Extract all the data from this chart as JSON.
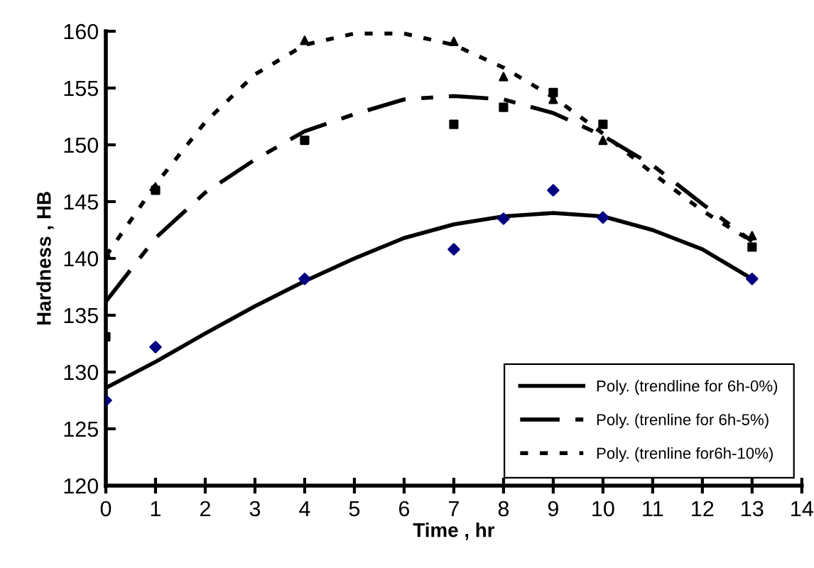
{
  "chart_data": {
    "type": "scatter",
    "xlabel": "Time , hr",
    "ylabel": "Hardness , HB",
    "xlim": [
      0,
      14
    ],
    "ylim": [
      120,
      160
    ],
    "xticks": [
      0,
      1,
      2,
      3,
      4,
      5,
      6,
      7,
      8,
      9,
      10,
      11,
      12,
      13,
      14
    ],
    "yticks": [
      120,
      125,
      130,
      135,
      140,
      145,
      150,
      155,
      160
    ],
    "grid": false,
    "legend": "bottom right",
    "series": [
      {
        "marker": "diamond",
        "color": "#000080",
        "x": [
          0,
          1,
          4,
          7,
          8,
          9,
          10,
          13
        ],
        "values": [
          127.5,
          132.2,
          138.2,
          140.8,
          143.5,
          146,
          143.6,
          138.2
        ]
      },
      {
        "marker": "square",
        "color": "#000000",
        "x": [
          0,
          1,
          4,
          7,
          8,
          9,
          10,
          13
        ],
        "values": [
          133.1,
          146,
          150.4,
          151.8,
          153.3,
          154.6,
          151.8,
          141
        ]
      },
      {
        "marker": "triangle",
        "color": "#000000",
        "x": [
          0,
          1,
          4,
          7,
          8,
          9,
          10,
          13
        ],
        "values": [
          140.5,
          146.3,
          159.2,
          159.1,
          156,
          154,
          150.4,
          142
        ]
      },
      {
        "type": "line",
        "name": "Poly. (trendline for 6h-0%)",
        "line_style": "solid",
        "color": "#000000",
        "x": [
          0,
          1,
          2,
          3,
          4,
          5,
          6,
          7,
          8,
          9,
          10,
          11,
          12,
          13
        ],
        "values": [
          128.6,
          130.9,
          133.4,
          135.8,
          138,
          140,
          141.8,
          143,
          143.7,
          144,
          143.7,
          142.5,
          140.8,
          138.2
        ]
      },
      {
        "type": "line",
        "name": "Poly. (trenline for 6h-5%)",
        "line_style": "dashdot",
        "color": "#000000",
        "x": [
          0,
          1,
          2,
          3,
          4,
          5,
          6,
          7,
          8,
          9,
          10,
          11,
          12,
          13
        ],
        "values": [
          136.2,
          141.8,
          145.8,
          148.7,
          151.2,
          152.7,
          154,
          154.3,
          154,
          152.8,
          150.8,
          148.2,
          144.8,
          141.5
        ]
      },
      {
        "type": "line",
        "name": "Poly. (trenline for6h-10%)",
        "line_style": "dotted",
        "color": "#000000",
        "x": [
          0,
          1,
          2,
          3,
          4,
          5,
          6,
          7,
          8,
          9,
          10,
          11,
          12,
          13
        ],
        "values": [
          140.2,
          146.5,
          152,
          156.2,
          158.8,
          159.8,
          159.8,
          158.8,
          156.8,
          154.2,
          151,
          147.5,
          144.2,
          141.5
        ]
      }
    ]
  }
}
